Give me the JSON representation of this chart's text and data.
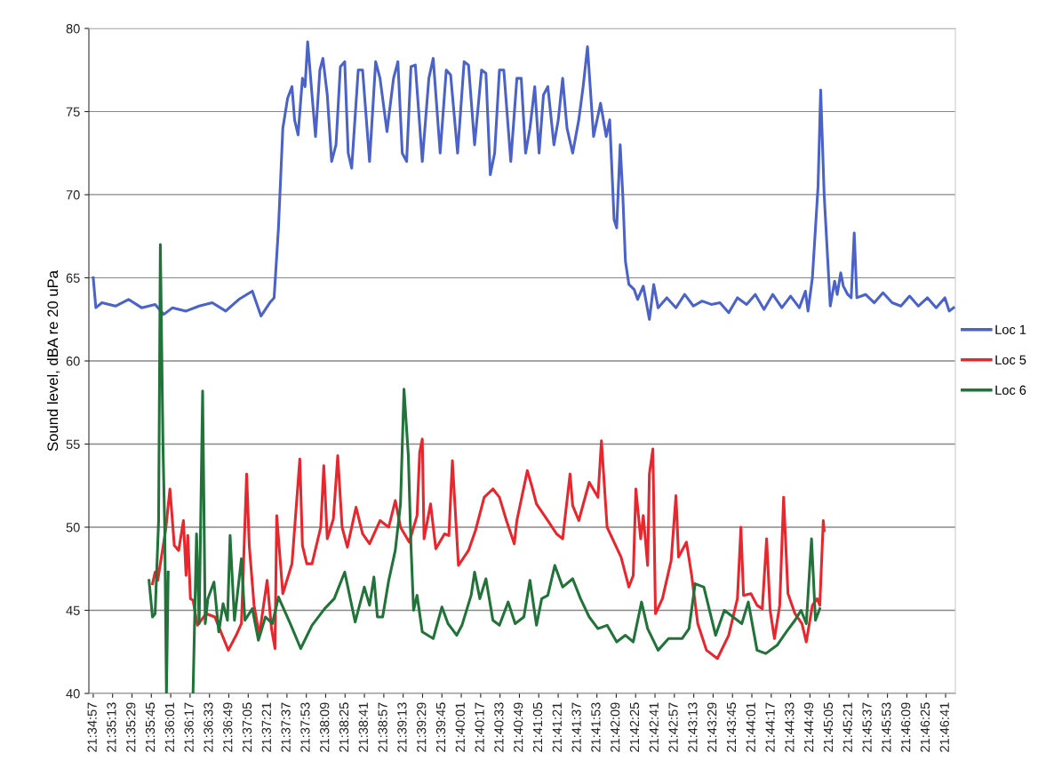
{
  "chart_data": {
    "type": "line",
    "ylabel": "Sound level, dBA re 20 uPa",
    "xlim": [
      21.5815,
      21.7803
    ],
    "ylim": [
      40,
      80
    ],
    "yticks": [
      40,
      45,
      50,
      55,
      60,
      65,
      70,
      75,
      80
    ],
    "xticks": [
      {
        "value": 21.5825,
        "label": "21:34:57"
      },
      {
        "value": 21.58694,
        "label": "21:35:13"
      },
      {
        "value": 21.59139,
        "label": "21:35:29"
      },
      {
        "value": 21.59583,
        "label": "21:35:45"
      },
      {
        "value": 21.60028,
        "label": "21:36:01"
      },
      {
        "value": 21.60472,
        "label": "21:36:17"
      },
      {
        "value": 21.60917,
        "label": "21:36:33"
      },
      {
        "value": 21.61361,
        "label": "21:36:49"
      },
      {
        "value": 21.61806,
        "label": "21:37:05"
      },
      {
        "value": 21.6225,
        "label": "21:37:21"
      },
      {
        "value": 21.62694,
        "label": "21:37:37"
      },
      {
        "value": 21.63139,
        "label": "21:37:53"
      },
      {
        "value": 21.63583,
        "label": "21:38:09"
      },
      {
        "value": 21.64028,
        "label": "21:38:25"
      },
      {
        "value": 21.64472,
        "label": "21:38:41"
      },
      {
        "value": 21.64917,
        "label": "21:38:57"
      },
      {
        "value": 21.65361,
        "label": "21:39:13"
      },
      {
        "value": 21.65806,
        "label": "21:39:29"
      },
      {
        "value": 21.6625,
        "label": "21:39:45"
      },
      {
        "value": 21.66694,
        "label": "21:40:01"
      },
      {
        "value": 21.67139,
        "label": "21:40:17"
      },
      {
        "value": 21.67583,
        "label": "21:40:33"
      },
      {
        "value": 21.68028,
        "label": "21:40:49"
      },
      {
        "value": 21.68472,
        "label": "21:41:05"
      },
      {
        "value": 21.68917,
        "label": "21:41:21"
      },
      {
        "value": 21.69361,
        "label": "21:41:37"
      },
      {
        "value": 21.69806,
        "label": "21:41:53"
      },
      {
        "value": 21.7025,
        "label": "21:42:09"
      },
      {
        "value": 21.70694,
        "label": "21:42:25"
      },
      {
        "value": 21.71139,
        "label": "21:42:41"
      },
      {
        "value": 21.71583,
        "label": "21:42:57"
      },
      {
        "value": 21.72028,
        "label": "21:43:13"
      },
      {
        "value": 21.72472,
        "label": "21:43:29"
      },
      {
        "value": 21.72917,
        "label": "21:43:45"
      },
      {
        "value": 21.73361,
        "label": "21:44:01"
      },
      {
        "value": 21.73806,
        "label": "21:44:17"
      },
      {
        "value": 21.7425,
        "label": "21:44:33"
      },
      {
        "value": 21.74694,
        "label": "21:44:49"
      },
      {
        "value": 21.75139,
        "label": "21:45:05"
      },
      {
        "value": 21.75583,
        "label": "21:45:21"
      },
      {
        "value": 21.76028,
        "label": "21:45:37"
      },
      {
        "value": 21.76472,
        "label": "21:45:53"
      },
      {
        "value": 21.76917,
        "label": "21:46:09"
      },
      {
        "value": 21.77361,
        "label": "21:46:25"
      },
      {
        "value": 21.77806,
        "label": "21:46:41"
      }
    ],
    "grid": "y",
    "legend": "right",
    "marker": "none",
    "line_style": "solid",
    "series": [
      {
        "name": "Loc 1",
        "color": "#4b63c8",
        "x": [
          21.5825,
          21.5831,
          21.5845,
          21.5876,
          21.5906,
          21.5936,
          21.5967,
          21.5987,
          21.6007,
          21.6038,
          21.6068,
          21.6098,
          21.6129,
          21.6159,
          21.619,
          21.621,
          21.623,
          21.624,
          21.625,
          21.626,
          21.6271,
          21.6281,
          21.6287,
          21.6295,
          21.6305,
          21.6311,
          21.6317,
          21.6327,
          21.6335,
          21.6345,
          21.6352,
          21.6362,
          21.6372,
          21.6382,
          21.6392,
          21.6402,
          21.641,
          21.6418,
          21.6433,
          21.6443,
          21.6459,
          21.6473,
          21.6483,
          21.6499,
          21.6514,
          21.6524,
          21.6534,
          21.6544,
          21.6554,
          21.6564,
          21.658,
          21.6595,
          21.6605,
          21.6621,
          21.6635,
          21.6645,
          21.6661,
          21.6676,
          21.6686,
          21.67,
          21.6716,
          21.6726,
          21.6736,
          21.6746,
          21.6757,
          21.6767,
          21.6783,
          21.6797,
          21.6807,
          21.6817,
          21.6827,
          21.6838,
          21.6848,
          21.6858,
          21.6868,
          21.6882,
          21.6892,
          21.6902,
          21.6912,
          21.6925,
          21.6939,
          21.6949,
          21.6959,
          21.6973,
          21.6981,
          21.6989,
          21.7002,
          21.701,
          21.702,
          21.7026,
          21.7034,
          21.704,
          21.7046,
          21.7054,
          21.7066,
          21.7074,
          21.7087,
          21.7101,
          21.7111,
          21.7121,
          21.7141,
          21.7162,
          21.7182,
          21.7202,
          21.7222,
          21.7243,
          21.7263,
          21.7283,
          21.7303,
          21.7324,
          21.7344,
          21.7364,
          21.7384,
          21.7405,
          21.7425,
          21.7445,
          21.7459,
          21.7465,
          21.7475,
          21.7488,
          21.7494,
          21.7502,
          21.7516,
          21.7526,
          21.7532,
          21.754,
          21.7546,
          21.7556,
          21.7564,
          21.7571,
          21.7577,
          21.7597,
          21.7617,
          21.7637,
          21.7658,
          21.7678,
          21.7698,
          21.7718,
          21.7739,
          21.7759,
          21.7779,
          21.7789,
          21.7799
        ],
        "values": [
          65.0,
          63.2,
          63.5,
          63.3,
          63.7,
          63.2,
          63.4,
          62.8,
          63.2,
          63.0,
          63.3,
          63.5,
          63.0,
          63.7,
          64.2,
          62.7,
          63.5,
          63.8,
          68,
          74,
          75.8,
          76.5,
          74.5,
          73.6,
          77,
          76.5,
          79.2,
          76,
          73.5,
          77.5,
          78.2,
          76,
          72,
          73,
          77.7,
          78.0,
          72.5,
          71.6,
          77.5,
          77.5,
          72,
          78,
          77,
          73.8,
          77,
          78,
          72.5,
          72,
          77.7,
          77.8,
          72,
          77,
          78.2,
          72.5,
          77.5,
          77.2,
          72.5,
          78,
          77.8,
          73,
          77.5,
          77.3,
          71.2,
          72.5,
          77.5,
          77.5,
          72,
          77,
          77,
          72.5,
          74,
          76.5,
          72.5,
          76,
          76.5,
          73.0,
          74.5,
          77,
          74,
          72.5,
          74.5,
          76.5,
          78.9,
          73.5,
          74.5,
          75.5,
          73.5,
          74.5,
          68.5,
          68,
          73,
          70,
          66,
          64.6,
          64.3,
          63.7,
          64.5,
          62.5,
          64.6,
          63.2,
          63.8,
          63.2,
          64,
          63.3,
          63.6,
          63.4,
          63.5,
          62.9,
          63.8,
          63.4,
          64.0,
          63.1,
          64.0,
          63.2,
          63.9,
          63.2,
          64.2,
          63.0,
          65,
          70.5,
          76.3,
          70,
          63.3,
          64.8,
          64,
          65.3,
          64.5,
          64,
          63.8,
          67.7,
          63.8,
          64.0,
          63.5,
          64.1,
          63.5,
          63.3,
          63.9,
          63.3,
          63.8,
          63.2,
          63.8,
          63.0,
          63.2
        ]
      },
      {
        "name": "Loc 5",
        "color": "#e8262d",
        "x": [
          21.5961,
          21.5967,
          21.5973,
          21.5991,
          21.6001,
          21.6011,
          21.6021,
          21.6032,
          21.6038,
          21.6042,
          21.6048,
          21.6054,
          21.6064,
          21.6084,
          21.6104,
          21.6135,
          21.6153,
          21.6165,
          21.6177,
          21.6183,
          21.6194,
          21.6206,
          21.6224,
          21.6234,
          21.6242,
          21.6246,
          21.626,
          21.6281,
          21.6299,
          21.6305,
          21.6315,
          21.6327,
          21.6347,
          21.6354,
          21.6362,
          21.6376,
          21.6386,
          21.6396,
          21.6408,
          21.6428,
          21.6443,
          21.6459,
          21.6483,
          21.6503,
          21.6518,
          21.653,
          21.655,
          21.6568,
          21.6574,
          21.658,
          21.6584,
          21.6599,
          21.6611,
          21.6631,
          21.6641,
          21.6649,
          21.6663,
          21.6686,
          21.6702,
          21.6722,
          21.6742,
          21.6757,
          21.6773,
          21.6791,
          21.6797,
          21.6821,
          21.6831,
          21.6842,
          21.6868,
          21.6888,
          21.6902,
          21.6919,
          21.6925,
          21.6939,
          21.6963,
          21.6983,
          21.6991,
          21.7004,
          21.702,
          21.7036,
          21.7054,
          21.7064,
          21.707,
          21.7081,
          21.7087,
          21.7097,
          21.7101,
          21.7109,
          21.7115,
          21.7131,
          21.7151,
          21.7162,
          21.7168,
          21.7186,
          21.7198,
          21.7212,
          21.7232,
          21.7257,
          21.7283,
          21.7293,
          21.7303,
          21.7311,
          21.7317,
          21.7334,
          21.7348,
          21.736,
          21.737,
          21.7378,
          21.7388,
          21.74,
          21.7409,
          21.7419,
          21.7435,
          21.7451,
          21.7461,
          21.7475,
          21.7486,
          21.7492,
          21.75,
          21.7502
        ],
        "values": [
          46.6,
          47.3,
          46.8,
          49.8,
          52.3,
          48.9,
          48.6,
          50.4,
          47.1,
          49.5,
          45.7,
          45.6,
          44.1,
          44.8,
          44.6,
          42.6,
          43.5,
          44.2,
          53.2,
          48.9,
          45.3,
          43.5,
          46.8,
          43.9,
          42.7,
          50.7,
          46.0,
          47.8,
          54.1,
          48.9,
          47.8,
          47.8,
          50.0,
          53.7,
          49.3,
          50.5,
          54.3,
          50.0,
          48.8,
          51.2,
          49.6,
          49.0,
          50.4,
          50.0,
          51.6,
          50.0,
          49.1,
          50.7,
          54.5,
          55.3,
          49.3,
          51.4,
          48.7,
          49.6,
          49.5,
          54.0,
          47.7,
          48.6,
          49.8,
          51.8,
          52.3,
          51.8,
          50.4,
          49.0,
          50.4,
          53.4,
          52.5,
          51.4,
          50.4,
          49.6,
          49.3,
          53.2,
          51.3,
          50.4,
          52.7,
          51.8,
          55.2,
          50.0,
          49.1,
          48.2,
          46.4,
          47.1,
          52.3,
          49.3,
          50.7,
          47.7,
          53.2,
          54.7,
          44.8,
          45.7,
          48.0,
          51.9,
          48.2,
          49.1,
          47.1,
          44.2,
          42.6,
          42.1,
          43.5,
          44.6,
          45.7,
          50.0,
          45.9,
          46.0,
          45.3,
          45.1,
          49.3,
          45.0,
          43.3,
          45.3,
          51.8,
          46.0,
          44.8,
          44.2,
          43.1,
          45.3,
          45.7,
          45.3,
          50.4,
          49.8
        ]
      },
      {
        "name": "Loc 6",
        "color": "#21733a",
        "x": [
          21.5953,
          21.5961,
          21.5967,
          21.5975,
          21.5979,
          21.5985,
          21.5989,
          21.5993,
          21.5997,
          21.603,
          21.6054,
          21.6062,
          21.6068,
          21.6076,
          21.6082,
          21.6088,
          21.6102,
          21.6113,
          21.6123,
          21.6133,
          21.6139,
          21.6149,
          21.6165,
          21.6173,
          21.619,
          21.6204,
          21.622,
          21.6236,
          21.625,
          21.6277,
          21.6301,
          21.6327,
          21.6356,
          21.6378,
          21.6402,
          21.6426,
          21.6447,
          21.6459,
          21.6469,
          21.6477,
          21.6489,
          21.6503,
          21.6518,
          21.653,
          21.6538,
          21.6548,
          21.6554,
          21.656,
          21.6568,
          21.658,
          21.6605,
          21.6625,
          21.6639,
          21.6659,
          21.6671,
          21.6692,
          21.67,
          21.6712,
          21.6726,
          21.6742,
          21.6757,
          21.6777,
          21.6793,
          21.6813,
          21.6827,
          21.6842,
          21.6854,
          21.6868,
          21.6884,
          21.6902,
          21.6925,
          21.6943,
          21.6963,
          21.6983,
          21.7004,
          21.7026,
          21.7046,
          21.7064,
          21.7083,
          21.7097,
          21.7121,
          21.7145,
          21.7176,
          21.7192,
          21.7206,
          21.7226,
          21.7253,
          21.7273,
          21.7313,
          21.7328,
          21.7348,
          21.7368,
          21.7394,
          21.7415,
          21.7435,
          21.7449,
          21.7461,
          21.7473,
          21.7482,
          21.7492
        ],
        "values": [
          46.8,
          44.6,
          44.8,
          50.4,
          67.0,
          55,
          50,
          40,
          47.3,
          null,
          40,
          49.6,
          44.2,
          58.2,
          44.2,
          45.7,
          46.7,
          43.7,
          45.4,
          44.4,
          49.5,
          44.4,
          48.1,
          44.4,
          45.1,
          43.2,
          44.6,
          44.2,
          45.8,
          44.2,
          42.7,
          44.1,
          45.1,
          45.7,
          47.3,
          44.3,
          46.4,
          45.3,
          47.0,
          44.6,
          44.6,
          46.8,
          48.6,
          51.4,
          58.3,
          54.3,
          48.9,
          45.0,
          45.9,
          43.7,
          43.3,
          45.2,
          44.2,
          43.5,
          44.1,
          45.9,
          47.3,
          45.7,
          46.9,
          44.4,
          44.1,
          45.5,
          44.2,
          44.6,
          46.8,
          44.1,
          45.7,
          45.9,
          47.7,
          46.4,
          46.9,
          45.7,
          44.6,
          43.9,
          44.1,
          43.1,
          43.5,
          43.1,
          45.5,
          43.9,
          42.6,
          43.3,
          43.3,
          43.9,
          46.6,
          46.4,
          43.5,
          45.0,
          44.2,
          45.5,
          42.6,
          42.4,
          42.9,
          43.7,
          44.4,
          45.0,
          44.2,
          49.3,
          44.4,
          45.1
        ]
      }
    ]
  }
}
